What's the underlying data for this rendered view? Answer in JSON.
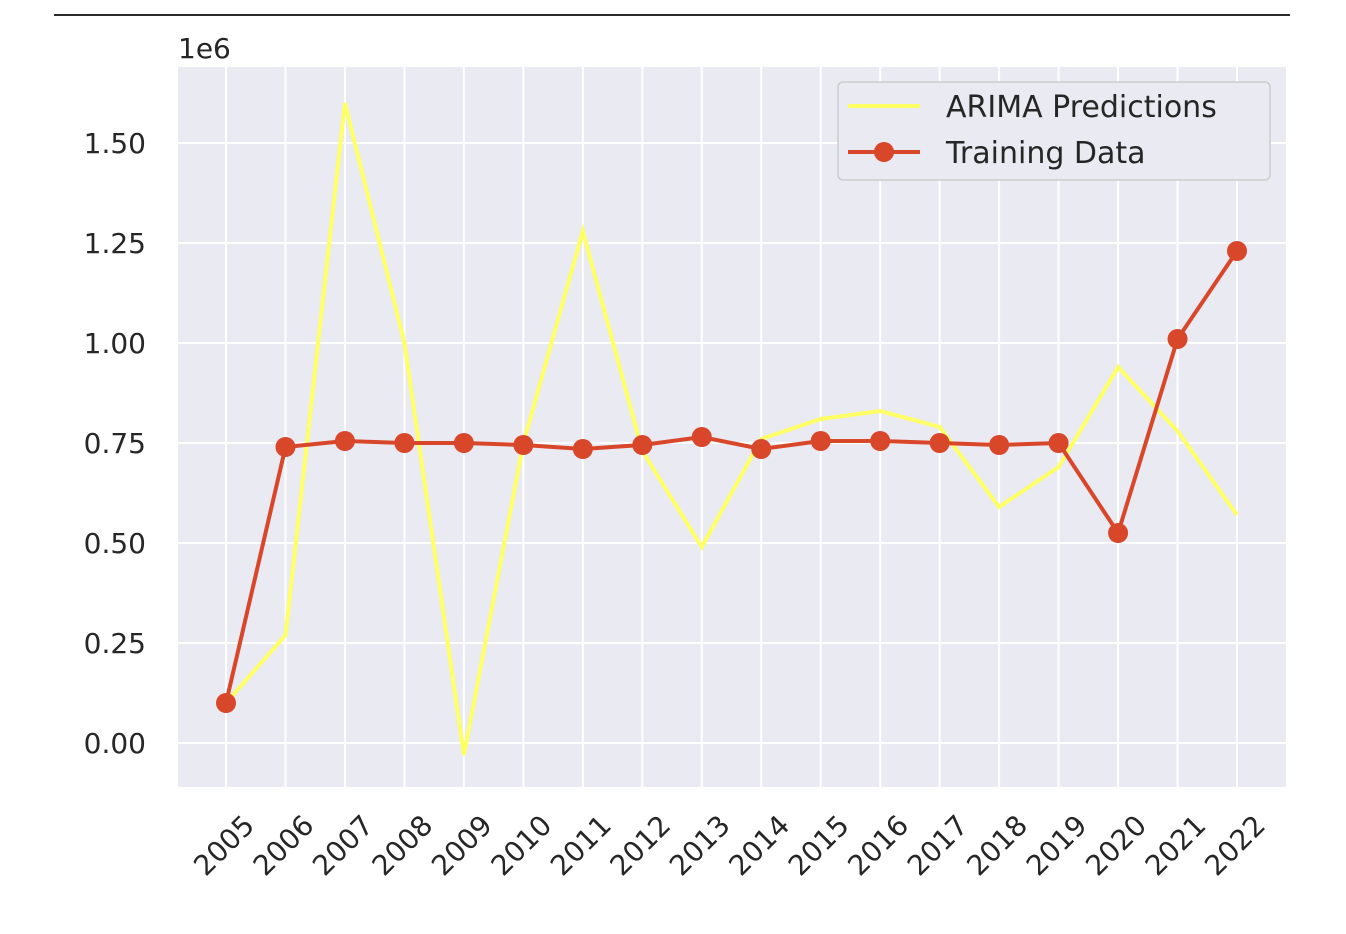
{
  "chart_data": {
    "type": "line",
    "title": "",
    "xlabel": "",
    "ylabel": "",
    "y_offset_label": "1e6",
    "categories": [
      "2005",
      "2006",
      "2007",
      "2008",
      "2009",
      "2010",
      "2011",
      "2012",
      "2013",
      "2014",
      "2015",
      "2016",
      "2017",
      "2018",
      "2019",
      "2020",
      "2021",
      "2022"
    ],
    "ylim": [
      -0.11,
      1.69
    ],
    "yticks": [
      0.0,
      0.25,
      0.5,
      0.75,
      1.0,
      1.25,
      1.5
    ],
    "ytick_labels": [
      "0.00",
      "0.25",
      "0.50",
      "0.75",
      "1.00",
      "1.25",
      "1.50"
    ],
    "grid": true,
    "legend_position": "top-right",
    "series": [
      {
        "name": "ARIMA Predictions",
        "color": "#ffff66",
        "marker": "none",
        "values": [
          0.1,
          0.27,
          1.6,
          1.0,
          -0.03,
          0.75,
          1.28,
          0.73,
          0.49,
          0.76,
          0.81,
          0.83,
          0.79,
          0.59,
          0.69,
          0.94,
          0.78,
          0.57
        ]
      },
      {
        "name": "Training Data",
        "color": "#d9472b",
        "marker": "circle",
        "values": [
          0.1,
          0.74,
          0.755,
          0.75,
          0.75,
          0.745,
          0.735,
          0.745,
          0.765,
          0.735,
          0.755,
          0.755,
          0.75,
          0.745,
          0.75,
          0.525,
          1.01,
          1.23
        ]
      }
    ]
  }
}
